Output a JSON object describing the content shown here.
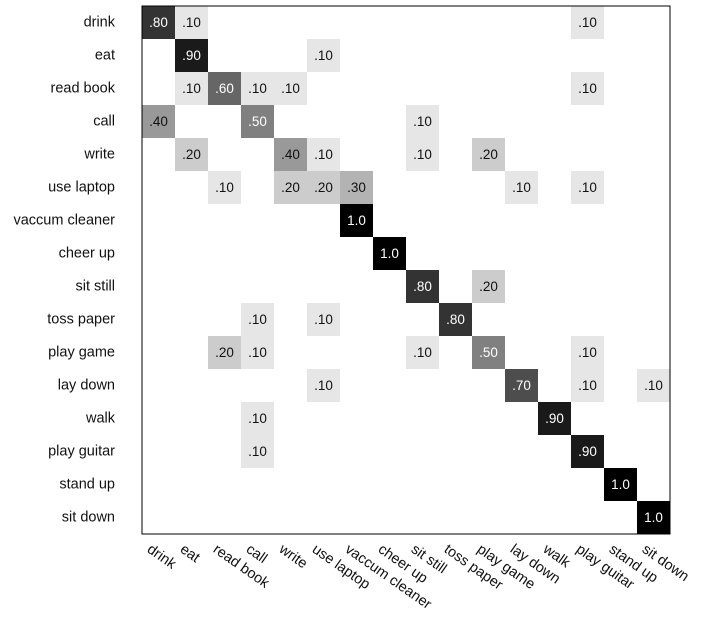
{
  "chart_data": {
    "type": "heatmap",
    "rows": [
      "drink",
      "eat",
      "read book",
      "call",
      "write",
      "use laptop",
      "vaccum cleaner",
      "cheer up",
      "sit still",
      "toss paper",
      "play game",
      "lay down",
      "walk",
      "play guitar",
      "stand up",
      "sit down"
    ],
    "columns": [
      "drink",
      "eat",
      "read book",
      "call",
      "write",
      "use laptop",
      "vaccum cleaner",
      "cheer up",
      "sit still",
      "toss paper",
      "play game",
      "lay down",
      "walk",
      "play guitar",
      "stand up",
      "sit down"
    ],
    "cells": [
      {
        "row": 0,
        "col": 0,
        "value": 0.8,
        "label": ".80"
      },
      {
        "row": 0,
        "col": 1,
        "value": 0.1,
        "label": ".10"
      },
      {
        "row": 0,
        "col": 13,
        "value": 0.1,
        "label": ".10"
      },
      {
        "row": 1,
        "col": 1,
        "value": 0.9,
        "label": ".90"
      },
      {
        "row": 1,
        "col": 5,
        "value": 0.1,
        "label": ".10"
      },
      {
        "row": 2,
        "col": 1,
        "value": 0.1,
        "label": ".10"
      },
      {
        "row": 2,
        "col": 2,
        "value": 0.6,
        "label": ".60"
      },
      {
        "row": 2,
        "col": 3,
        "value": 0.1,
        "label": ".10"
      },
      {
        "row": 2,
        "col": 4,
        "value": 0.1,
        "label": ".10"
      },
      {
        "row": 2,
        "col": 13,
        "value": 0.1,
        "label": ".10"
      },
      {
        "row": 3,
        "col": 0,
        "value": 0.4,
        "label": ".40"
      },
      {
        "row": 3,
        "col": 3,
        "value": 0.5,
        "label": ".50"
      },
      {
        "row": 3,
        "col": 8,
        "value": 0.1,
        "label": ".10"
      },
      {
        "row": 4,
        "col": 1,
        "value": 0.2,
        "label": ".20"
      },
      {
        "row": 4,
        "col": 4,
        "value": 0.4,
        "label": ".40"
      },
      {
        "row": 4,
        "col": 5,
        "value": 0.1,
        "label": ".10"
      },
      {
        "row": 4,
        "col": 8,
        "value": 0.1,
        "label": ".10"
      },
      {
        "row": 4,
        "col": 10,
        "value": 0.2,
        "label": ".20"
      },
      {
        "row": 5,
        "col": 2,
        "value": 0.1,
        "label": ".10"
      },
      {
        "row": 5,
        "col": 4,
        "value": 0.2,
        "label": ".20"
      },
      {
        "row": 5,
        "col": 5,
        "value": 0.2,
        "label": ".20"
      },
      {
        "row": 5,
        "col": 6,
        "value": 0.3,
        "label": ".30"
      },
      {
        "row": 5,
        "col": 11,
        "value": 0.1,
        "label": ".10"
      },
      {
        "row": 5,
        "col": 13,
        "value": 0.1,
        "label": ".10"
      },
      {
        "row": 6,
        "col": 6,
        "value": 1.0,
        "label": "1.0"
      },
      {
        "row": 7,
        "col": 7,
        "value": 1.0,
        "label": "1.0"
      },
      {
        "row": 8,
        "col": 8,
        "value": 0.8,
        "label": ".80"
      },
      {
        "row": 8,
        "col": 10,
        "value": 0.2,
        "label": ".20"
      },
      {
        "row": 9,
        "col": 3,
        "value": 0.1,
        "label": ".10"
      },
      {
        "row": 9,
        "col": 5,
        "value": 0.1,
        "label": ".10"
      },
      {
        "row": 9,
        "col": 9,
        "value": 0.8,
        "label": ".80"
      },
      {
        "row": 10,
        "col": 2,
        "value": 0.2,
        "label": ".20"
      },
      {
        "row": 10,
        "col": 3,
        "value": 0.1,
        "label": ".10"
      },
      {
        "row": 10,
        "col": 8,
        "value": 0.1,
        "label": ".10"
      },
      {
        "row": 10,
        "col": 10,
        "value": 0.5,
        "label": ".50"
      },
      {
        "row": 10,
        "col": 13,
        "value": 0.1,
        "label": ".10"
      },
      {
        "row": 11,
        "col": 5,
        "value": 0.1,
        "label": ".10"
      },
      {
        "row": 11,
        "col": 11,
        "value": 0.7,
        "label": ".70"
      },
      {
        "row": 11,
        "col": 13,
        "value": 0.1,
        "label": ".10"
      },
      {
        "row": 11,
        "col": 15,
        "value": 0.1,
        "label": ".10"
      },
      {
        "row": 12,
        "col": 3,
        "value": 0.1,
        "label": ".10"
      },
      {
        "row": 12,
        "col": 12,
        "value": 0.9,
        "label": ".90"
      },
      {
        "row": 13,
        "col": 3,
        "value": 0.1,
        "label": ".10"
      },
      {
        "row": 13,
        "col": 13,
        "value": 0.9,
        "label": ".90"
      },
      {
        "row": 14,
        "col": 14,
        "value": 1.0,
        "label": "1.0"
      },
      {
        "row": 15,
        "col": 15,
        "value": 1.0,
        "label": "1.0"
      }
    ],
    "scale": {
      "min": 0,
      "max": 1,
      "low_color": "#ffffff",
      "high_color": "#000000"
    },
    "grid": false,
    "legend": "none"
  }
}
